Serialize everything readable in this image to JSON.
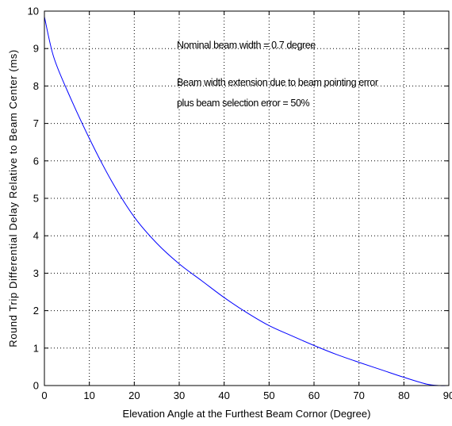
{
  "chart_data": {
    "type": "line",
    "title": "",
    "xlabel": "Elevation Angle at the Furthest Beam Cornor (Degree)",
    "ylabel": "Round Trip Differential Delay Relative to Beam Center (ms)",
    "xlim": [
      0,
      90
    ],
    "ylim": [
      0,
      10
    ],
    "xticks": [
      0,
      10,
      20,
      30,
      40,
      50,
      60,
      70,
      80,
      90
    ],
    "yticks": [
      0,
      1,
      2,
      3,
      4,
      5,
      6,
      7,
      8,
      9,
      10
    ],
    "grid": true,
    "annotations": [
      "Nominal beam width = 0.7 degree",
      "Beam width extension due to beam pointing error",
      "plus beam selection error = 50%"
    ],
    "series": [
      {
        "color": "#0000ff",
        "x": [
          0,
          2,
          5,
          10,
          15,
          20,
          25,
          30,
          35,
          40,
          45,
          50,
          55,
          60,
          65,
          70,
          75,
          80,
          85,
          88,
          90
        ],
        "y": [
          9.85,
          8.8,
          7.9,
          6.6,
          5.45,
          4.5,
          3.8,
          3.25,
          2.8,
          2.35,
          1.95,
          1.6,
          1.33,
          1.07,
          0.83,
          0.62,
          0.42,
          0.22,
          0.04,
          0.0,
          0.0
        ]
      }
    ]
  }
}
